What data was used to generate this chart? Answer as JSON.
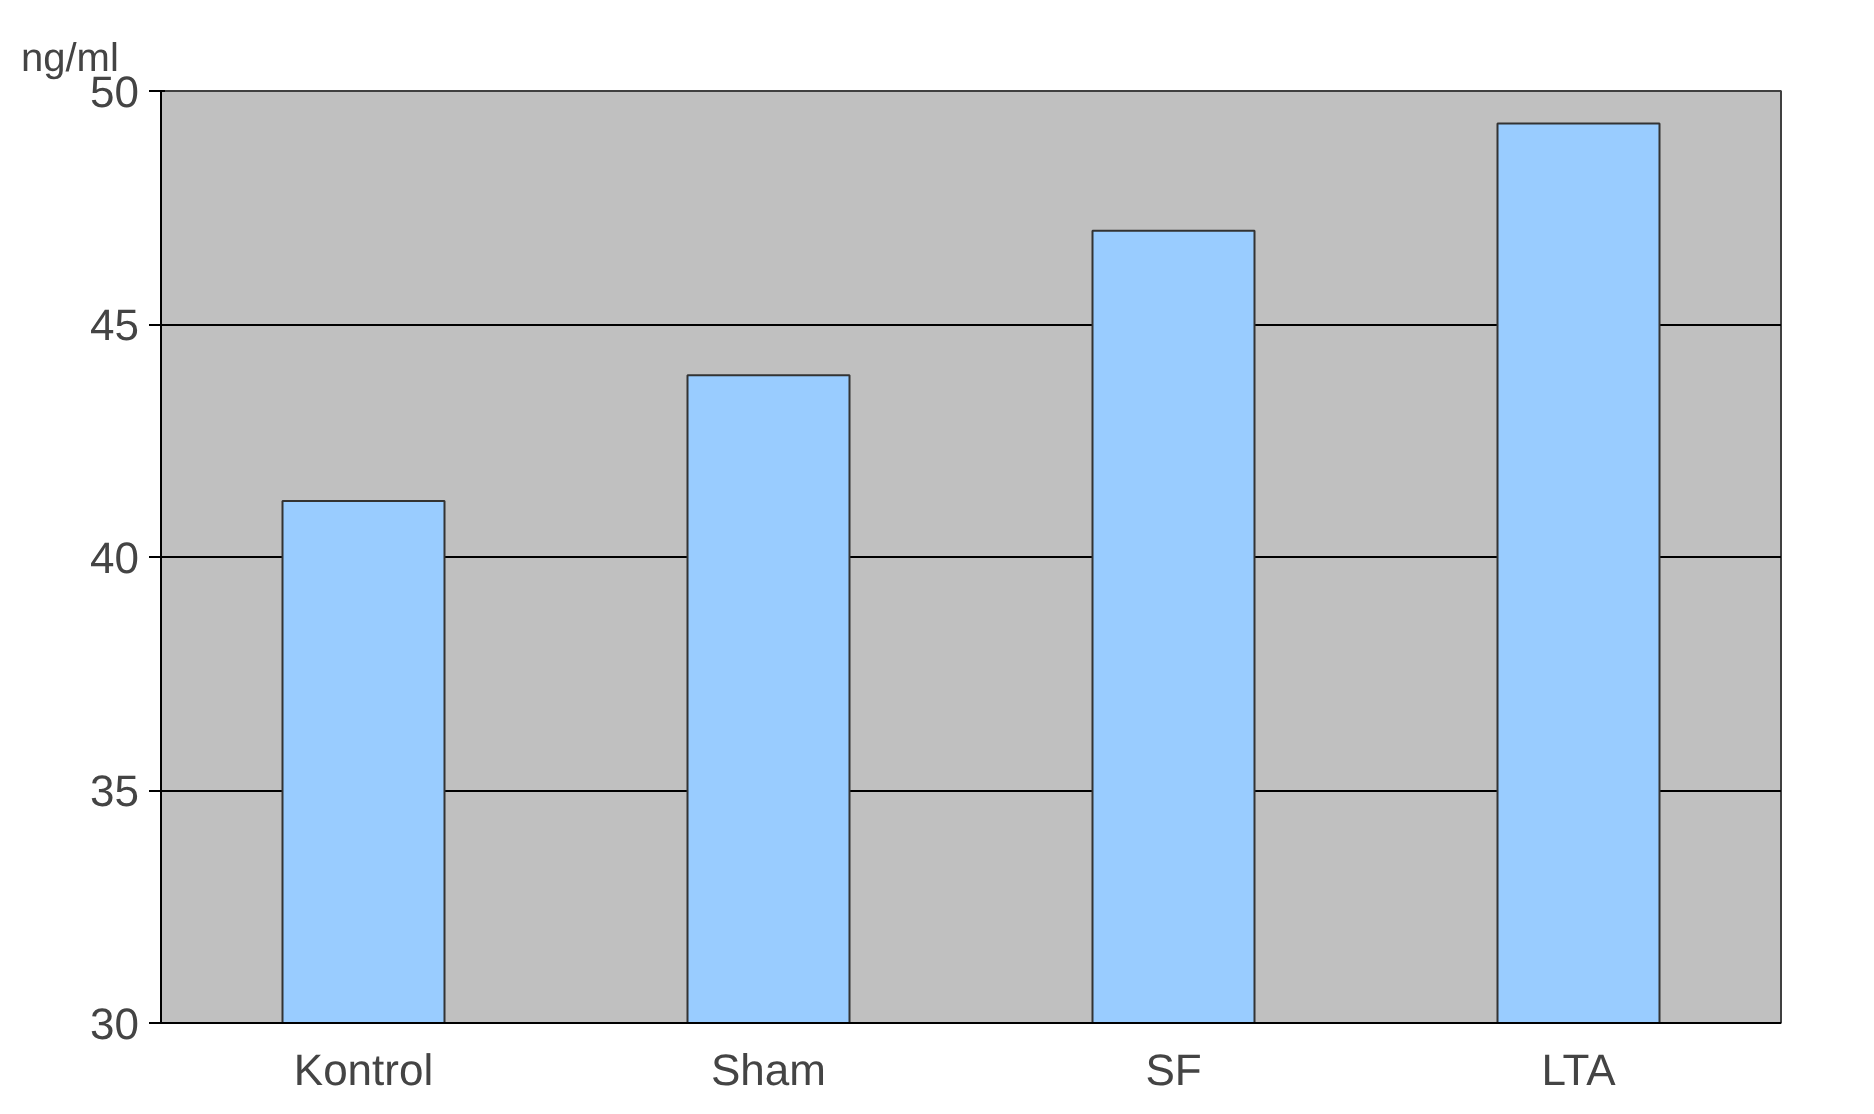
{
  "chart_data": {
    "type": "bar",
    "ylabel": "ng/ml",
    "categories": [
      "Kontrol",
      "Sham",
      "SF",
      "LTA"
    ],
    "values": [
      41.2,
      43.9,
      47.0,
      49.3
    ],
    "color": "#99ccff",
    "ylim": [
      30,
      50
    ],
    "yticks": [
      30,
      35,
      40,
      45,
      50
    ],
    "grid": "y"
  }
}
